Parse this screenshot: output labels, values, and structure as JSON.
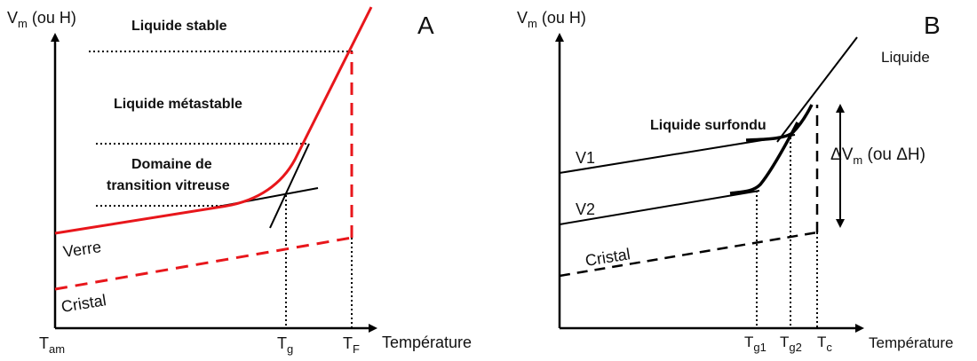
{
  "panel_a": {
    "panel_letter": "A",
    "y_axis_label": {
      "main": "V",
      "sub": "m",
      "rest": " (ou H)"
    },
    "x_axis_label": "Température",
    "x_ticks": {
      "t_am": {
        "main": "T",
        "sub": "am"
      },
      "t_g": {
        "main": "T",
        "sub": "g"
      },
      "t_f": {
        "main": "T",
        "sub": "F"
      }
    },
    "regions": {
      "liquide_stable": "Liquide stable",
      "liquide_metastable": "Liquide métastable",
      "domaine_line1": "Domaine de",
      "domaine_line2": "transition vitreuse"
    },
    "curve_labels": {
      "verre": "Verre",
      "cristal": "Cristal"
    },
    "colors": {
      "liquid_glass": "#e8161b",
      "tangent": "#000000",
      "guide": "#000000"
    }
  },
  "panel_b": {
    "panel_letter": "B",
    "y_axis_label": {
      "main": "V",
      "sub": "m",
      "rest": " (ou H)"
    },
    "x_axis_label": "Température",
    "x_ticks": {
      "t_g1": {
        "main": "T",
        "sub": "g1"
      },
      "t_g2": {
        "main": "T",
        "sub": "g2"
      },
      "t_c": {
        "main": "T",
        "sub": "c"
      }
    },
    "curve_labels": {
      "liquide": "Liquide",
      "liquide_surfondu": "Liquide surfondu",
      "v1": "V1",
      "v2": "V2",
      "cristal": "Cristal"
    },
    "delta_label": {
      "main": "ΔV",
      "sub": "m",
      "rest": " (ou ΔH)"
    }
  }
}
